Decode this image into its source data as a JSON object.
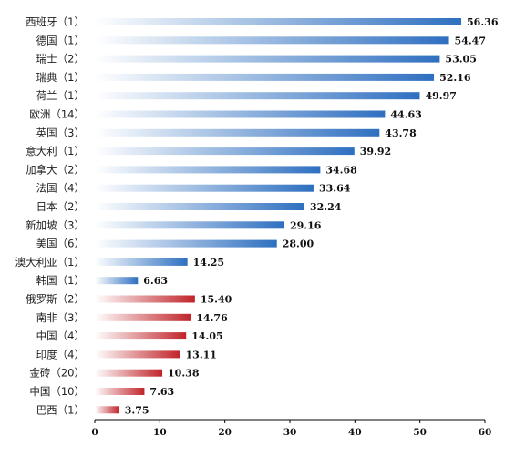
{
  "chart_data": {
    "type": "bar",
    "orientation": "horizontal",
    "categories": [
      "西班牙（1）",
      "德国（1）",
      "瑞士（2）",
      "瑞典（1）",
      "荷兰（1）",
      "欧洲（14）",
      "英国（3）",
      "意大利（1）",
      "加拿大（2）",
      "法国（4）",
      "日本（2）",
      "新加坡（3）",
      "美国（6）",
      "澳大利亚（1）",
      "韩国（1）",
      "俄罗斯（2）",
      "南非（3）",
      "中国（4）",
      "印度（4）",
      "金砖（20）",
      "中国（10）",
      "巴西（1）"
    ],
    "values": [
      56.36,
      54.47,
      53.05,
      52.16,
      49.97,
      44.63,
      43.78,
      39.92,
      34.68,
      33.64,
      32.24,
      29.16,
      28.0,
      14.25,
      6.63,
      15.4,
      14.76,
      14.05,
      13.11,
      10.38,
      7.63,
      3.75
    ],
    "value_labels": [
      "56.36",
      "54.47",
      "53.05",
      "52.16",
      "49.97",
      "44.63",
      "43.78",
      "39.92",
      "34.68",
      "33.64",
      "32.24",
      "29.16",
      "28.00",
      "14.25",
      "6.63",
      "15.40",
      "14.76",
      "14.05",
      "13.11",
      "10.38",
      "7.63",
      "3.75"
    ],
    "groups": [
      "blue",
      "blue",
      "blue",
      "blue",
      "blue",
      "blue",
      "blue",
      "blue",
      "blue",
      "blue",
      "blue",
      "blue",
      "blue",
      "blue",
      "blue",
      "red",
      "red",
      "red",
      "red",
      "red",
      "red",
      "red"
    ],
    "colors": {
      "blue": "#2e6fc0",
      "red": "#c0242a"
    },
    "xlim": [
      0,
      60
    ],
    "x_ticks": [
      "0",
      "10",
      "20",
      "30",
      "40",
      "50",
      "60"
    ],
    "title": "",
    "xlabel": "",
    "ylabel": "",
    "grid": false,
    "legend": "none"
  }
}
